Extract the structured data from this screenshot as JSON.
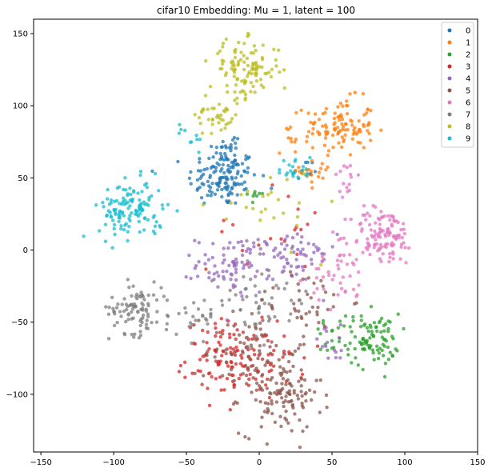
{
  "chart_data": {
    "type": "scatter",
    "title": "cifar10 Embedding: Mu = 1, latent = 100",
    "xlabel": "",
    "ylabel": "",
    "xlim": [
      -155,
      150
    ],
    "ylim": [
      -140,
      160
    ],
    "xticks": [
      -150,
      -100,
      -50,
      0,
      50,
      100,
      150
    ],
    "yticks": [
      -100,
      -50,
      0,
      50,
      100,
      150
    ],
    "grid": false,
    "legend_position": "top-right",
    "series": [
      {
        "name": "0",
        "color": "#1f77b4",
        "clusters": [
          {
            "cx": -25,
            "cy": 50,
            "sx": 12,
            "sy": 10,
            "n": 130
          },
          {
            "cx": -20,
            "cy": 70,
            "sx": 6,
            "sy": 6,
            "n": 25
          },
          {
            "cx": 30,
            "cy": 55,
            "sx": 6,
            "sy": 4,
            "n": 10
          }
        ]
      },
      {
        "name": "1",
        "color": "#ff7f0e",
        "clusters": [
          {
            "cx": 55,
            "cy": 85,
            "sx": 12,
            "sy": 10,
            "n": 110
          },
          {
            "cx": 40,
            "cy": 55,
            "sx": 6,
            "sy": 5,
            "n": 20
          },
          {
            "cx": 20,
            "cy": 75,
            "sx": 6,
            "sy": 5,
            "n": 10
          }
        ]
      },
      {
        "name": "2",
        "color": "#2ca02c",
        "clusters": [
          {
            "cx": 78,
            "cy": -62,
            "sx": 9,
            "sy": 9,
            "n": 90
          },
          {
            "cx": 50,
            "cy": -60,
            "sx": 8,
            "sy": 8,
            "n": 20
          },
          {
            "cx": -2,
            "cy": 40,
            "sx": 3,
            "sy": 3,
            "n": 8
          }
        ]
      },
      {
        "name": "3",
        "color": "#d62728",
        "clusters": [
          {
            "cx": -20,
            "cy": -75,
            "sx": 15,
            "sy": 13,
            "n": 110
          },
          {
            "cx": 10,
            "cy": -80,
            "sx": 10,
            "sy": 10,
            "n": 30
          },
          {
            "cx": 5,
            "cy": 15,
            "sx": 20,
            "sy": 15,
            "n": 20
          }
        ]
      },
      {
        "name": "4",
        "color": "#9467bd",
        "clusters": [
          {
            "cx": -15,
            "cy": -10,
            "sx": 14,
            "sy": 10,
            "n": 90
          },
          {
            "cx": 25,
            "cy": -5,
            "sx": 14,
            "sy": 10,
            "n": 50
          },
          {
            "cx": 50,
            "cy": -65,
            "sx": 8,
            "sy": 6,
            "n": 15
          }
        ]
      },
      {
        "name": "5",
        "color": "#8c564b",
        "clusters": [
          {
            "cx": 15,
            "cy": -100,
            "sx": 14,
            "sy": 14,
            "n": 120
          },
          {
            "cx": -5,
            "cy": -70,
            "sx": 16,
            "sy": 16,
            "n": 70
          },
          {
            "cx": 30,
            "cy": -35,
            "sx": 16,
            "sy": 10,
            "n": 40
          }
        ]
      },
      {
        "name": "6",
        "color": "#e377c2",
        "clusters": [
          {
            "cx": 85,
            "cy": 10,
            "sx": 11,
            "sy": 10,
            "n": 120
          },
          {
            "cx": 55,
            "cy": -20,
            "sx": 10,
            "sy": 10,
            "n": 40
          },
          {
            "cx": 60,
            "cy": 50,
            "sx": 5,
            "sy": 7,
            "n": 15
          }
        ]
      },
      {
        "name": "7",
        "color": "#7f7f7f",
        "clusters": [
          {
            "cx": -85,
            "cy": -40,
            "sx": 9,
            "sy": 9,
            "n": 90
          },
          {
            "cx": -45,
            "cy": -45,
            "sx": 10,
            "sy": 8,
            "n": 30
          },
          {
            "cx": 5,
            "cy": -35,
            "sx": 16,
            "sy": 14,
            "n": 50
          }
        ]
      },
      {
        "name": "8",
        "color": "#bcbd22",
        "clusters": [
          {
            "cx": -10,
            "cy": 125,
            "sx": 12,
            "sy": 10,
            "n": 110
          },
          {
            "cx": -28,
            "cy": 95,
            "sx": 8,
            "sy": 8,
            "n": 40
          },
          {
            "cx": 5,
            "cy": 30,
            "sx": 18,
            "sy": 14,
            "n": 25
          }
        ]
      },
      {
        "name": "9",
        "color": "#17becf",
        "clusters": [
          {
            "cx": -88,
            "cy": 28,
            "sx": 11,
            "sy": 10,
            "n": 130
          },
          {
            "cx": 25,
            "cy": 55,
            "sx": 6,
            "sy": 5,
            "n": 20
          },
          {
            "cx": -45,
            "cy": 80,
            "sx": 6,
            "sy": 5,
            "n": 10
          }
        ]
      }
    ]
  }
}
